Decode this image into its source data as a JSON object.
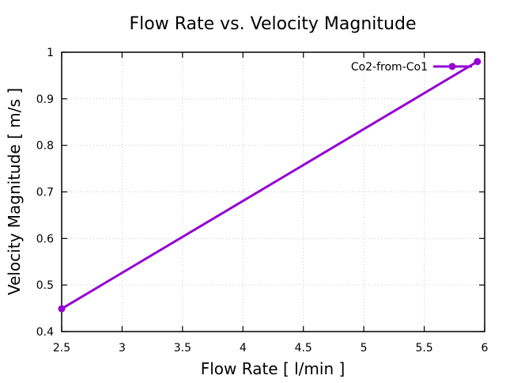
{
  "chart_data": {
    "type": "line",
    "title": "Flow Rate vs. Velocity Magnitude",
    "xlabel": "Flow Rate [ l/min ]",
    "ylabel": "Velocity Magnitude [ m/s ]",
    "xlim": [
      2.5,
      6
    ],
    "ylim": [
      0.4,
      1
    ],
    "xticks": [
      "2.5",
      "3",
      "3.5",
      "4",
      "4.5",
      "5",
      "5.5",
      "6"
    ],
    "yticks": [
      "0.4",
      "0.5",
      "0.6",
      "0.7",
      "0.8",
      "0.9",
      "1"
    ],
    "grid": true,
    "legend_position": "top-right",
    "series": [
      {
        "name": "Co2-from-Co1",
        "color": "#9400d3",
        "x": [
          2.5,
          5.94
        ],
        "y": [
          0.449,
          0.98
        ]
      }
    ]
  }
}
